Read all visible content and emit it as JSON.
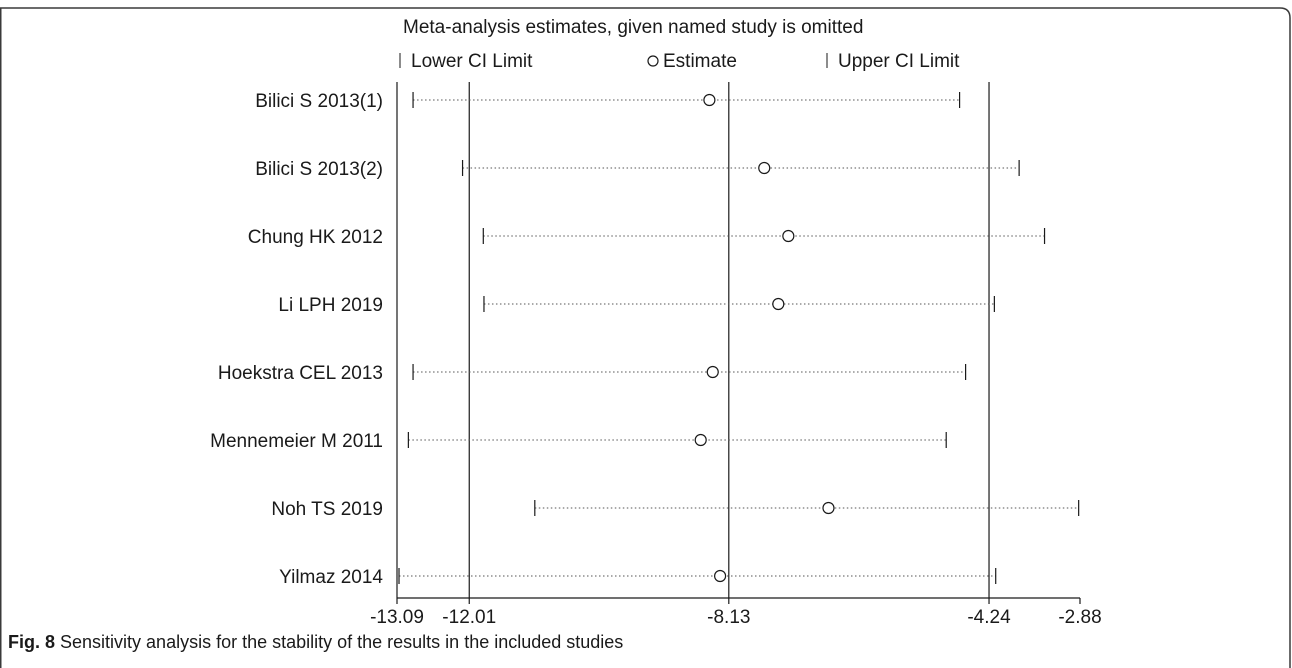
{
  "chart_data": {
    "type": "forest",
    "title": "Meta-analysis estimates, given named study is omitted",
    "legend": {
      "lower": "Lower CI Limit",
      "estimate": "Estimate",
      "upper": "Upper CI Limit"
    },
    "xlim": [
      -13.09,
      -2.88
    ],
    "x_ticks": [
      -13.09,
      -12.01,
      -8.13,
      -4.24,
      -2.88
    ],
    "x_tick_labels": [
      "-13.09",
      "-12.01",
      "-8.13",
      "-4.24",
      "-2.88"
    ],
    "reference_lines": [
      -12.01,
      -8.13,
      -4.24
    ],
    "studies": [
      {
        "label": "Bilici S 2013(1)",
        "lower": -12.85,
        "estimate": -8.42,
        "upper": -4.68
      },
      {
        "label": "Bilici S 2013(2)",
        "lower": -12.11,
        "estimate": -7.6,
        "upper": -3.79
      },
      {
        "label": "Chung  HK 2012",
        "lower": -11.8,
        "estimate": -7.24,
        "upper": -3.41
      },
      {
        "label": "Li LPH 2019",
        "lower": -11.79,
        "estimate": -7.39,
        "upper": -4.16
      },
      {
        "label": "Hoekstra CEL 2013",
        "lower": -12.85,
        "estimate": -8.37,
        "upper": -4.59
      },
      {
        "label": "Mennemeier M 2011",
        "lower": -12.92,
        "estimate": -8.55,
        "upper": -4.88
      },
      {
        "label": "Noh TS 2019",
        "lower": -11.03,
        "estimate": -6.64,
        "upper": -2.9
      },
      {
        "label": "Yilmaz 2014",
        "lower": -13.06,
        "estimate": -8.26,
        "upper": -4.14
      }
    ]
  },
  "caption": {
    "label": "Fig. 8",
    "text": " Sensitivity analysis for the stability of the results in the included studies"
  }
}
